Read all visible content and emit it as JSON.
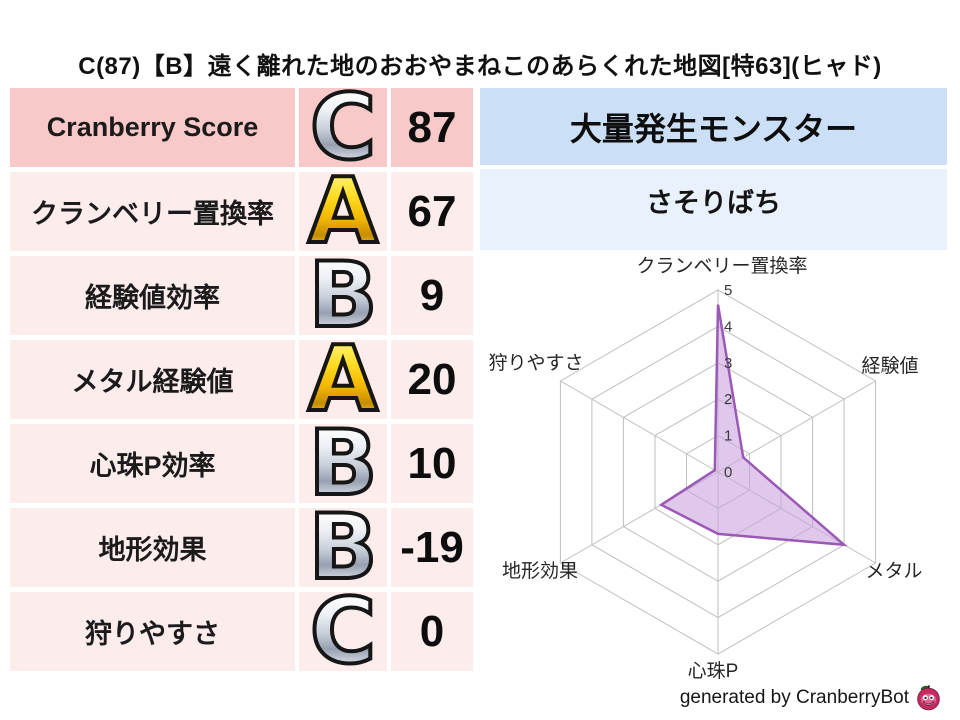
{
  "title": "C(87)【B】遠く離れた地のおおやまねこのあらくれた地図[特63](ヒャド)",
  "stats_table": {
    "rows": [
      {
        "label": "Cranberry Score",
        "grade": "C",
        "value": "87"
      },
      {
        "label": "クランベリー置換率",
        "grade": "A",
        "value": "67"
      },
      {
        "label": "経験値効率",
        "grade": "B",
        "value": "9"
      },
      {
        "label": "メタル経験値",
        "grade": "A",
        "value": "20"
      },
      {
        "label": "心珠P効率",
        "grade": "B",
        "value": "10"
      },
      {
        "label": "地形効果",
        "grade": "B",
        "value": "-19"
      },
      {
        "label": "狩りやすさ",
        "grade": "C",
        "value": "0"
      }
    ],
    "grade_styles": {
      "A": "gold",
      "B": "silver",
      "C": "silver"
    }
  },
  "monster_panel": {
    "header": "大量発生モンスター",
    "monster_name": "さそりばち"
  },
  "chart_data": {
    "type": "radar",
    "categories": [
      "クランベリー置換率",
      "経験値",
      "メタル",
      "心珠P",
      "地形効果",
      "狩りやすさ"
    ],
    "values": [
      4.6,
      0.8,
      4.0,
      1.7,
      1.8,
      0.1
    ],
    "ticks": [
      0,
      1,
      2,
      3,
      4,
      5
    ],
    "rmax": 5,
    "start": "top",
    "direction": "clockwise",
    "grid": true,
    "grid_color": "#bfbfbf",
    "tick_color": "#3a3a3a",
    "label_color": "#262626",
    "fill_color": "#c9a3dd",
    "fill_opacity": 0.6,
    "stroke_color": "#9b59b6"
  },
  "footer": {
    "credit": "generated by CranberryBot"
  },
  "colors": {
    "score_row_bg": "#f9c8c8",
    "stat_row_bg": "#fdecec",
    "panel_header_bg": "#cbe0f7",
    "panel_sub_bg": "#e9f2fc",
    "grade_gold": "#f4b800",
    "grade_silver": "#aab4c2",
    "cranberry_icon": "#c62a62"
  }
}
